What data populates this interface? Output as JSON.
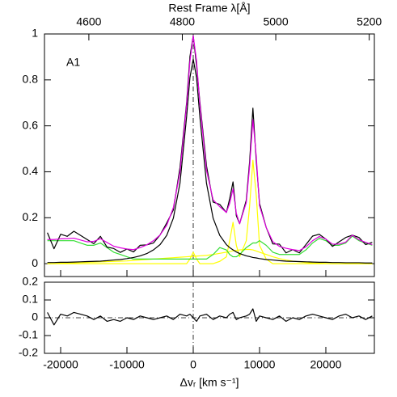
{
  "chart_data": [
    {
      "type": "line",
      "x2label": "Rest Frame λ[Å]",
      "x2lim": [
        4505,
        5211
      ],
      "x2ticks": [
        4600,
        4800,
        5000,
        5200
      ],
      "annotation": "A1",
      "xlim": [
        -22440,
        27320
      ],
      "ylim": [
        -0.056,
        1
      ],
      "yticks": [
        0,
        0.2,
        0.4,
        0.6,
        0.8,
        1
      ],
      "vline": 0,
      "x": [
        -22000,
        -21000,
        -20000,
        -19000,
        -18000,
        -17000,
        -16000,
        -15000,
        -14000,
        -13000,
        -12000,
        -11000,
        -10000,
        -9000,
        -8000,
        -7000,
        -6000,
        -5000,
        -4000,
        -3000,
        -2000,
        -1000,
        -500,
        0,
        500,
        1000,
        2000,
        3000,
        4000,
        5000,
        5500,
        6000,
        6500,
        7000,
        8000,
        8500,
        9000,
        9500,
        10000,
        11000,
        12000,
        13000,
        14000,
        15000,
        16000,
        17000,
        18000,
        19000,
        20000,
        21000,
        22000,
        23000,
        24000,
        25000,
        26000,
        27000
      ],
      "series": [
        {
          "color": "#ffff00",
          "values": [
            0,
            0,
            0.002,
            0.003,
            0.004,
            0.005,
            0.006,
            0.007,
            0.008,
            0.009,
            0.01,
            0.011,
            0.012,
            0.014,
            0.016,
            0.018,
            0.02,
            0.022,
            0.024,
            0.026,
            0.028,
            0.03,
            0.031,
            0.032,
            0.033,
            0.034,
            0.036,
            0.04,
            0.045,
            0.05,
            0.053,
            0.056,
            0.058,
            0.06,
            0.062,
            0.062,
            0.06,
            0.055,
            0.05,
            0.04,
            0.03,
            0.022,
            0.016,
            0.011,
            0.008,
            0.005,
            0.003,
            0.002,
            0.001,
            0,
            0,
            0,
            0,
            0,
            0,
            0
          ]
        },
        {
          "color": "#ffff00",
          "values": [
            0,
            0,
            0,
            0,
            0,
            0,
            0,
            0,
            0,
            0,
            0,
            0,
            0,
            0,
            0,
            0,
            0,
            0,
            0,
            0,
            0,
            0,
            0.02,
            0.05,
            0.02,
            0,
            0,
            0,
            0.01,
            0.03,
            0.1,
            0.18,
            0.08,
            0.03,
            0.1,
            0.25,
            0.45,
            0.3,
            0.08,
            0.02,
            0,
            0,
            0,
            0,
            0,
            0,
            0,
            0,
            0,
            0,
            0,
            0,
            0,
            0,
            0,
            0
          ]
        },
        {
          "color": "#33dd33",
          "values": [
            0.1,
            0.1,
            0.1,
            0.1,
            0.1,
            0.09,
            0.08,
            0.08,
            0.09,
            0.07,
            0.05,
            0.04,
            0.03,
            0.02,
            0.02,
            0.02,
            0.02,
            0.02,
            0.02,
            0.02,
            0.02,
            0.02,
            0.02,
            0.02,
            0.02,
            0.02,
            0.02,
            0.04,
            0.07,
            0.06,
            0.04,
            0.03,
            0.03,
            0.04,
            0.07,
            0.08,
            0.09,
            0.09,
            0.1,
            0.08,
            0.05,
            0.04,
            0.04,
            0.04,
            0.04,
            0.06,
            0.09,
            0.11,
            0.1,
            0.08,
            0.08,
            0.09,
            0.12,
            0.1,
            0.09,
            0.08
          ]
        },
        {
          "color": "#000000",
          "values": [
            0.005,
            0.005,
            0.006,
            0.006,
            0.007,
            0.008,
            0.009,
            0.01,
            0.011,
            0.013,
            0.016,
            0.018,
            0.022,
            0.027,
            0.034,
            0.044,
            0.06,
            0.083,
            0.123,
            0.198,
            0.35,
            0.64,
            0.81,
            0.89,
            0.81,
            0.64,
            0.35,
            0.198,
            0.123,
            0.083,
            0.07,
            0.06,
            0.051,
            0.044,
            0.034,
            0.031,
            0.027,
            0.025,
            0.022,
            0.018,
            0.016,
            0.013,
            0.011,
            0.01,
            0.009,
            0.008,
            0.007,
            0.006,
            0.006,
            0.005,
            0.005,
            0.004,
            0.004,
            0.004,
            0.003,
            0.003
          ]
        },
        {
          "color": "#000000",
          "values": [
            0.135,
            0.065,
            0.128,
            0.119,
            0.141,
            0.123,
            0.105,
            0.087,
            0.119,
            0.072,
            0.066,
            0.049,
            0.064,
            0.051,
            0.08,
            0.082,
            0.09,
            0.125,
            0.177,
            0.234,
            0.418,
            0.7,
            0.901,
            0.992,
            0.863,
            0.704,
            0.426,
            0.268,
            0.258,
            0.223,
            0.283,
            0.356,
            0.209,
            0.174,
            0.276,
            0.443,
            0.677,
            0.45,
            0.262,
            0.158,
            0.086,
            0.085,
            0.047,
            0.061,
            0.047,
            0.083,
            0.12,
            0.128,
            0.107,
            0.075,
            0.095,
            0.114,
            0.124,
            0.114,
            0.083,
            0.093
          ]
        },
        {
          "color": "#e000e0",
          "values": [
            0.105,
            0.105,
            0.108,
            0.109,
            0.111,
            0.103,
            0.095,
            0.097,
            0.109,
            0.092,
            0.076,
            0.069,
            0.064,
            0.061,
            0.07,
            0.082,
            0.1,
            0.125,
            0.167,
            0.244,
            0.398,
            0.69,
            0.881,
            0.992,
            0.883,
            0.694,
            0.406,
            0.278,
            0.248,
            0.223,
            0.263,
            0.326,
            0.219,
            0.174,
            0.266,
            0.423,
            0.627,
            0.47,
            0.252,
            0.158,
            0.096,
            0.075,
            0.067,
            0.061,
            0.057,
            0.073,
            0.1,
            0.118,
            0.107,
            0.085,
            0.085,
            0.094,
            0.124,
            0.104,
            0.093,
            0.083
          ]
        }
      ]
    },
    {
      "type": "line",
      "xlabel": "Δvᵣ [km s⁻¹]",
      "xlim": [
        -22440,
        27320
      ],
      "xticks": [
        -20000,
        -10000,
        0,
        10000,
        20000
      ],
      "ylim": [
        -0.2,
        0.2
      ],
      "yticks": [
        -0.2,
        -0.1,
        0,
        0.1,
        0.2
      ],
      "vline": 0,
      "hline": 0,
      "x": [
        -22000,
        -21000,
        -20000,
        -19000,
        -18000,
        -17000,
        -16000,
        -15000,
        -14000,
        -13000,
        -12000,
        -11000,
        -10000,
        -9000,
        -8000,
        -7000,
        -6000,
        -5000,
        -4000,
        -3000,
        -2000,
        -1000,
        -500,
        0,
        500,
        1000,
        2000,
        3000,
        4000,
        5000,
        5500,
        6000,
        6500,
        7000,
        8000,
        8500,
        9000,
        9500,
        10000,
        11000,
        12000,
        13000,
        14000,
        15000,
        16000,
        17000,
        18000,
        19000,
        20000,
        21000,
        22000,
        23000,
        24000,
        25000,
        26000,
        27000
      ],
      "series": [
        {
          "color": "#000000",
          "values": [
            0.03,
            -0.04,
            0.02,
            0.01,
            0.03,
            0.02,
            0.01,
            -0.01,
            0.01,
            -0.02,
            -0.01,
            -0.02,
            0.0,
            -0.01,
            0.01,
            0.0,
            -0.01,
            0.0,
            0.01,
            -0.01,
            0.02,
            0.01,
            0.02,
            0.0,
            -0.02,
            0.01,
            0.02,
            -0.01,
            0.01,
            0.0,
            0.02,
            0.03,
            -0.01,
            0.0,
            0.01,
            0.02,
            0.05,
            -0.02,
            0.01,
            0.0,
            -0.01,
            0.01,
            -0.02,
            0.0,
            -0.01,
            0.01,
            0.02,
            0.01,
            0.0,
            -0.01,
            0.01,
            0.02,
            0.0,
            0.01,
            -0.01,
            0.01
          ]
        }
      ]
    }
  ]
}
